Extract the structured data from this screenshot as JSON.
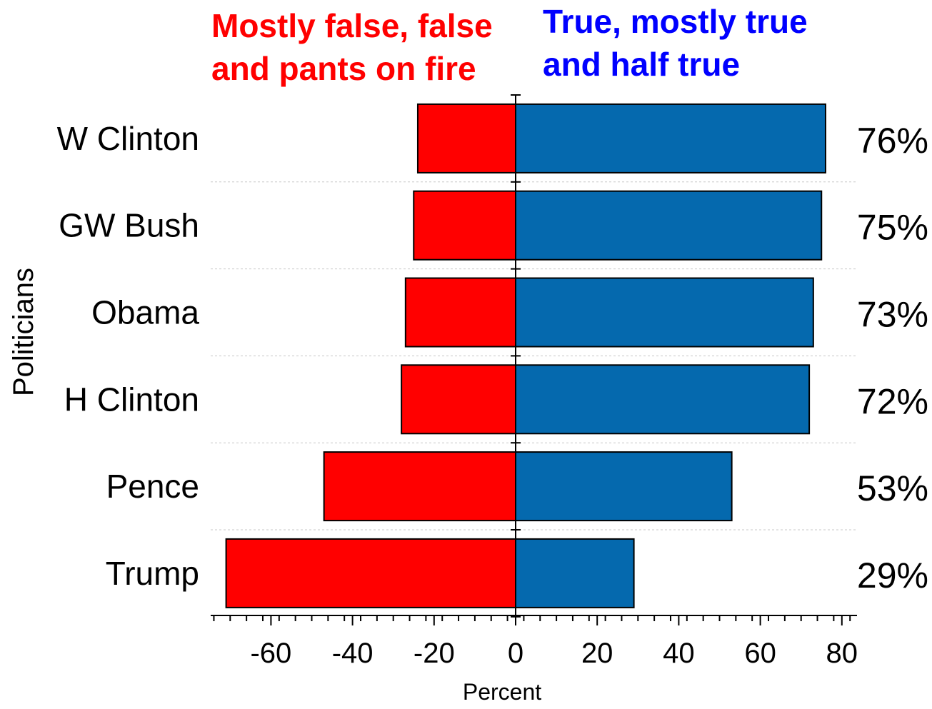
{
  "chart_data": {
    "type": "bar",
    "orientation": "horizontal-diverging",
    "categories": [
      "W Clinton",
      "GW Bush",
      "Obama",
      "H Clinton",
      "Pence",
      "Trump"
    ],
    "series": [
      {
        "name": "Mostly false, false and pants on fire",
        "values": [
          -24,
          -25,
          -27,
          -28,
          -47,
          -71
        ],
        "color": "#ff0000"
      },
      {
        "name": "True, mostly true and half true",
        "values": [
          76,
          75,
          73,
          72,
          53,
          29
        ],
        "color": "#0569ae"
      }
    ],
    "data_labels": [
      "76%",
      "75%",
      "73%",
      "72%",
      "53%",
      "29%"
    ],
    "legend": {
      "left_line1": "Mostly false, false",
      "left_line2": "and pants on fire",
      "left_color": "#ff0000",
      "right_line1": "True, mostly true",
      "right_line2": "and half true",
      "right_color": "#0000ff"
    },
    "xlabel": "Percent",
    "ylabel": "Politicians",
    "xlim": [
      -75,
      84
    ],
    "xticks": [
      -60,
      -40,
      -20,
      0,
      20,
      40,
      60,
      80
    ],
    "xtick_labels": [
      "-60",
      "-40",
      "-20",
      "0",
      "20",
      "40",
      "60",
      "80"
    ],
    "grid": "horizontal dashed separators"
  }
}
